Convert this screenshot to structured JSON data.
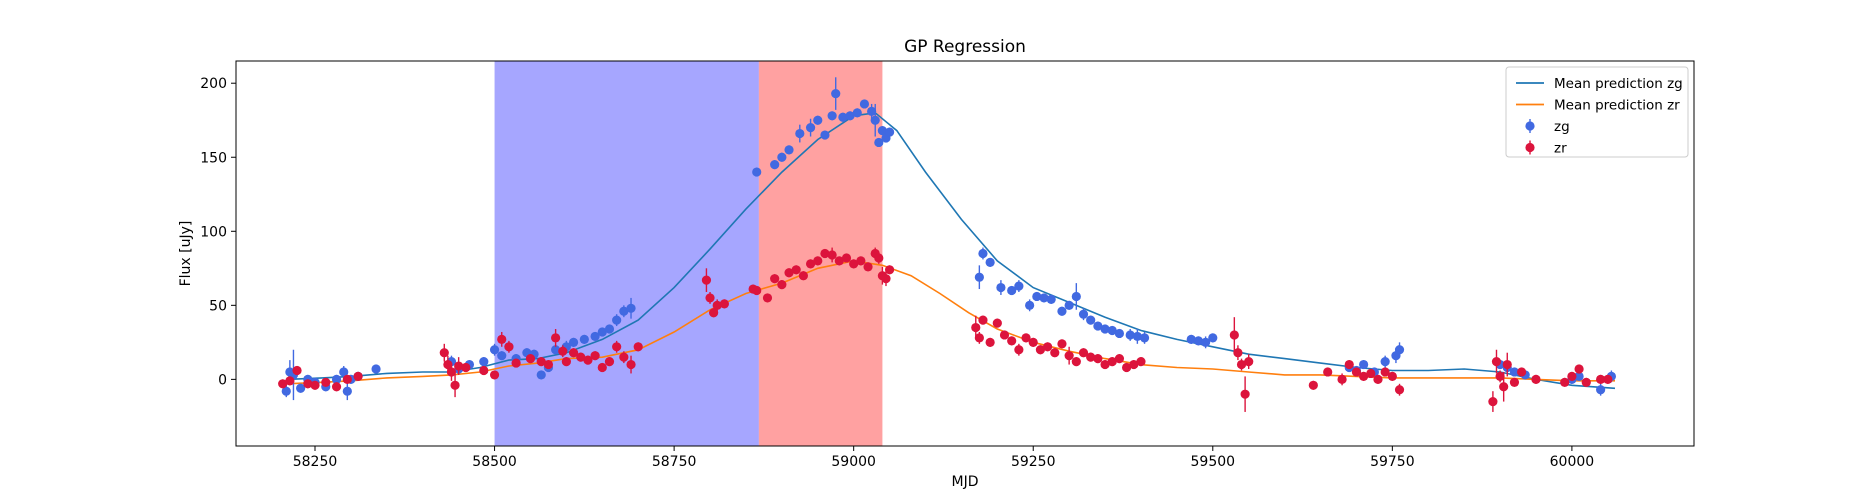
{
  "chart_data": {
    "type": "scatter",
    "title": "GP Regression",
    "xlabel": "MJD",
    "ylabel": "Flux [uJy]",
    "xlim": [
      58140,
      60170
    ],
    "ylim": [
      -45,
      215
    ],
    "xticks": [
      58250,
      58500,
      58750,
      59000,
      59250,
      59500,
      59750,
      60000
    ],
    "yticks": [
      0,
      50,
      100,
      150,
      200
    ],
    "grid": false,
    "legend_position": "top-right",
    "shaded_regions": [
      {
        "x": [
          58500,
          58868
        ],
        "color": "#6666ff",
        "opacity": 0.58
      },
      {
        "x": [
          58868,
          59040
        ],
        "color": "#ff4444",
        "opacity": 0.5
      }
    ],
    "series": [
      {
        "name": "Mean prediction zg",
        "kind": "line",
        "color": "#1f77b4",
        "x": [
          58210,
          58260,
          58300,
          58350,
          58400,
          58440,
          58480,
          58520,
          58560,
          58600,
          58650,
          58700,
          58750,
          58800,
          58850,
          58900,
          58950,
          59000,
          59030,
          59060,
          59100,
          59150,
          59200,
          59250,
          59300,
          59350,
          59400,
          59450,
          59500,
          59550,
          59600,
          59650,
          59700,
          59750,
          59800,
          59850,
          59900,
          59950,
          60000,
          60060
        ],
        "y": [
          0,
          1,
          2,
          4,
          5,
          5,
          8,
          13,
          14,
          18,
          27,
          40,
          62,
          88,
          115,
          140,
          162,
          178,
          180,
          168,
          140,
          108,
          80,
          62,
          52,
          42,
          33,
          27,
          22,
          17,
          14,
          11,
          8,
          6,
          6,
          7,
          5,
          0,
          -4,
          -6
        ]
      },
      {
        "name": "Mean prediction zr",
        "kind": "line",
        "color": "#ff7f0e",
        "x": [
          58210,
          58260,
          58300,
          58350,
          58400,
          58440,
          58480,
          58520,
          58560,
          58600,
          58650,
          58700,
          58750,
          58800,
          58850,
          58900,
          58950,
          59000,
          59040,
          59080,
          59120,
          59160,
          59200,
          59250,
          59300,
          59350,
          59400,
          59450,
          59500,
          59550,
          59600,
          59650,
          59700,
          59750,
          59800,
          59850,
          59900,
          59950,
          60000,
          60060
        ],
        "y": [
          -3,
          -2,
          -1,
          1,
          2,
          3,
          5,
          9,
          11,
          14,
          15,
          20,
          32,
          47,
          58,
          65,
          75,
          80,
          77,
          70,
          58,
          45,
          34,
          25,
          19,
          14,
          10,
          8,
          7,
          5,
          3,
          3,
          2,
          1,
          1,
          1,
          1,
          0,
          -1,
          -1
        ]
      },
      {
        "name": "zg",
        "kind": "errorbar",
        "color": "#4169e1",
        "x": [
          58210,
          58215,
          58220,
          58230,
          58240,
          58250,
          58265,
          58280,
          58290,
          58295,
          58300,
          58310,
          58335,
          58440,
          58450,
          58465,
          58485,
          58500,
          58510,
          58520,
          58530,
          58545,
          58555,
          58565,
          58575,
          58585,
          58600,
          58610,
          58625,
          58640,
          58650,
          58660,
          58670,
          58680,
          58690,
          58865,
          58890,
          58900,
          58910,
          58925,
          58940,
          58950,
          58960,
          58970,
          58975,
          58985,
          58995,
          59005,
          59015,
          59025,
          59030,
          59035,
          59040,
          59045,
          59050,
          59175,
          59180,
          59190,
          59205,
          59220,
          59230,
          59245,
          59255,
          59265,
          59275,
          59290,
          59300,
          59310,
          59320,
          59330,
          59340,
          59350,
          59360,
          59370,
          59385,
          59395,
          59405,
          59470,
          59480,
          59490,
          59500,
          59690,
          59700,
          59710,
          59725,
          59740,
          59755,
          59760,
          59900,
          59910,
          59920,
          59935,
          60000,
          60010,
          60040,
          60055
        ],
        "y": [
          -8,
          5,
          3,
          -6,
          0,
          -2,
          -5,
          0,
          5,
          -8,
          0,
          2,
          7,
          12,
          7,
          10,
          12,
          20,
          16,
          22,
          14,
          18,
          17,
          3,
          8,
          20,
          22,
          25,
          27,
          29,
          32,
          34,
          40,
          46,
          48,
          140,
          145,
          150,
          155,
          166,
          170,
          175,
          165,
          178,
          193,
          177,
          178,
          180,
          186,
          181,
          175,
          160,
          168,
          163,
          167,
          69,
          85,
          79,
          62,
          60,
          63,
          50,
          56,
          55,
          54,
          46,
          50,
          56,
          44,
          40,
          36,
          34,
          33,
          31,
          30,
          29,
          28,
          27,
          26,
          25,
          28,
          8,
          6,
          10,
          5,
          12,
          16,
          20,
          10,
          8,
          5,
          3,
          0,
          2,
          -7,
          2
        ],
        "yerr": [
          4,
          8,
          17,
          3,
          3,
          3,
          3,
          3,
          4,
          6,
          3,
          3,
          3,
          4,
          3,
          3,
          3,
          4,
          3,
          3,
          3,
          3,
          3,
          3,
          3,
          3,
          4,
          3,
          3,
          3,
          3,
          3,
          4,
          4,
          7,
          3,
          3,
          3,
          3,
          6,
          6,
          3,
          3,
          3,
          11,
          3,
          3,
          3,
          3,
          5,
          11,
          3,
          3,
          3,
          3,
          8,
          4,
          3,
          5,
          3,
          4,
          4,
          3,
          3,
          3,
          3,
          3,
          9,
          4,
          3,
          3,
          3,
          3,
          3,
          4,
          5,
          4,
          3,
          3,
          4,
          3,
          3,
          3,
          3,
          3,
          4,
          5,
          5,
          3,
          3,
          3,
          3,
          3,
          3,
          4,
          4
        ]
      },
      {
        "name": "zr",
        "kind": "errorbar",
        "color": "#dc143c",
        "x": [
          58205,
          58215,
          58225,
          58240,
          58250,
          58265,
          58280,
          58295,
          58310,
          58430,
          58435,
          58440,
          58445,
          58450,
          58460,
          58485,
          58500,
          58510,
          58520,
          58530,
          58550,
          58565,
          58575,
          58585,
          58595,
          58600,
          58610,
          58620,
          58630,
          58640,
          58650,
          58660,
          58670,
          58680,
          58690,
          58700,
          58795,
          58800,
          58805,
          58810,
          58820,
          58860,
          58865,
          58880,
          58890,
          58900,
          58910,
          58920,
          58930,
          58940,
          58950,
          58960,
          58970,
          58980,
          58990,
          59000,
          59010,
          59020,
          59030,
          59035,
          59040,
          59045,
          59050,
          59170,
          59175,
          59180,
          59190,
          59200,
          59210,
          59220,
          59230,
          59240,
          59250,
          59260,
          59270,
          59280,
          59290,
          59300,
          59310,
          59320,
          59330,
          59340,
          59350,
          59360,
          59370,
          59380,
          59390,
          59400,
          59530,
          59535,
          59540,
          59545,
          59550,
          59640,
          59660,
          59680,
          59690,
          59700,
          59710,
          59720,
          59730,
          59740,
          59750,
          59760,
          59890,
          59895,
          59900,
          59905,
          59910,
          59920,
          59930,
          59950,
          59990,
          60000,
          60010,
          60020,
          60040,
          60050
        ],
        "y": [
          -3,
          -1,
          6,
          -3,
          -4,
          -2,
          -5,
          0,
          2,
          18,
          10,
          5,
          -4,
          9,
          8,
          6,
          3,
          27,
          22,
          11,
          14,
          12,
          10,
          28,
          19,
          12,
          18,
          15,
          13,
          16,
          8,
          12,
          22,
          15,
          10,
          22,
          67,
          55,
          45,
          50,
          51,
          61,
          60,
          55,
          68,
          64,
          72,
          74,
          70,
          78,
          80,
          85,
          84,
          80,
          82,
          78,
          80,
          76,
          85,
          82,
          70,
          68,
          74,
          35,
          28,
          40,
          25,
          38,
          30,
          26,
          20,
          28,
          25,
          20,
          22,
          18,
          24,
          16,
          12,
          18,
          15,
          14,
          10,
          12,
          14,
          8,
          10,
          12,
          30,
          18,
          10,
          -10,
          12,
          -4,
          5,
          0,
          10,
          5,
          2,
          4,
          0,
          5,
          2,
          -7,
          -15,
          12,
          2,
          -5,
          10,
          -2,
          5,
          0,
          -2,
          2,
          7,
          -2,
          0,
          0
        ],
        "yerr": [
          3,
          3,
          3,
          3,
          3,
          3,
          3,
          3,
          3,
          6,
          6,
          6,
          8,
          6,
          3,
          3,
          3,
          5,
          4,
          3,
          3,
          3,
          3,
          6,
          4,
          3,
          3,
          3,
          3,
          3,
          3,
          3,
          4,
          4,
          6,
          3,
          8,
          4,
          3,
          4,
          3,
          3,
          3,
          3,
          3,
          3,
          3,
          3,
          3,
          3,
          3,
          3,
          5,
          3,
          3,
          3,
          3,
          3,
          4,
          4,
          6,
          5,
          3,
          8,
          4,
          3,
          3,
          3,
          3,
          3,
          4,
          3,
          3,
          3,
          3,
          3,
          3,
          6,
          3,
          3,
          3,
          3,
          3,
          3,
          3,
          3,
          3,
          3,
          12,
          5,
          4,
          12,
          5,
          3,
          3,
          4,
          3,
          3,
          3,
          3,
          3,
          3,
          3,
          4,
          7,
          8,
          4,
          10,
          8,
          3,
          3,
          3,
          3,
          3,
          3,
          3,
          3,
          3
        ]
      }
    ]
  }
}
